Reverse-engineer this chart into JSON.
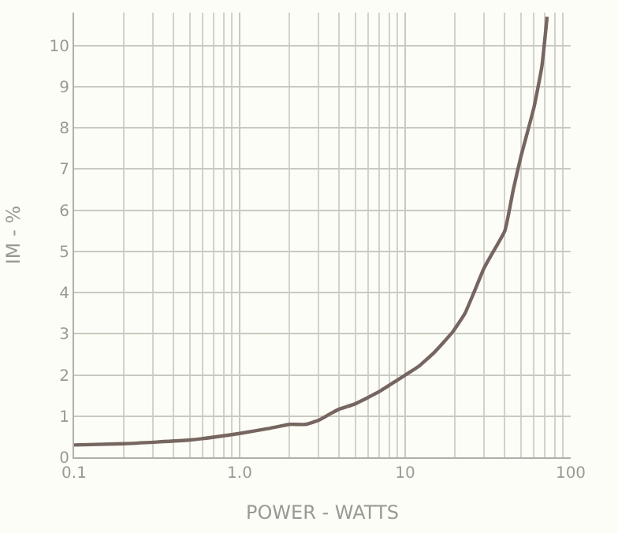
{
  "chart_data": {
    "type": "line",
    "xlabel": "POWER - WATTS",
    "ylabel": "IM - %",
    "log": "x",
    "grid": true,
    "marker": "none",
    "line_style": "solid",
    "x": [
      0.1,
      0.2,
      0.5,
      1.0,
      1.5,
      2.0,
      2.5,
      3.0,
      3.5,
      4,
      5,
      7,
      9,
      12,
      15,
      19.4,
      23,
      26,
      30,
      33,
      40,
      45,
      50,
      60,
      67,
      72
    ],
    "series": [
      {
        "color": "#76665f",
        "values": [
          0.3,
          0.33,
          0.42,
          0.58,
          0.7,
          0.8,
          0.8,
          0.9,
          1.05,
          1.17,
          1.3,
          1.6,
          1.88,
          2.2,
          2.55,
          3.05,
          3.5,
          4.0,
          4.6,
          4.9,
          5.5,
          6.5,
          7.3,
          8.5,
          9.5,
          10.7
        ]
      }
    ],
    "xlim": [
      0.1,
      100
    ],
    "ylim": [
      0,
      10.8
    ],
    "xticks": [
      {
        "value": 0.1,
        "label": "0.1"
      },
      {
        "value": 1,
        "label": "1.0"
      },
      10,
      100
    ],
    "yticks": [
      0,
      1,
      2,
      3,
      4,
      5,
      6,
      7,
      8,
      9,
      10
    ]
  }
}
